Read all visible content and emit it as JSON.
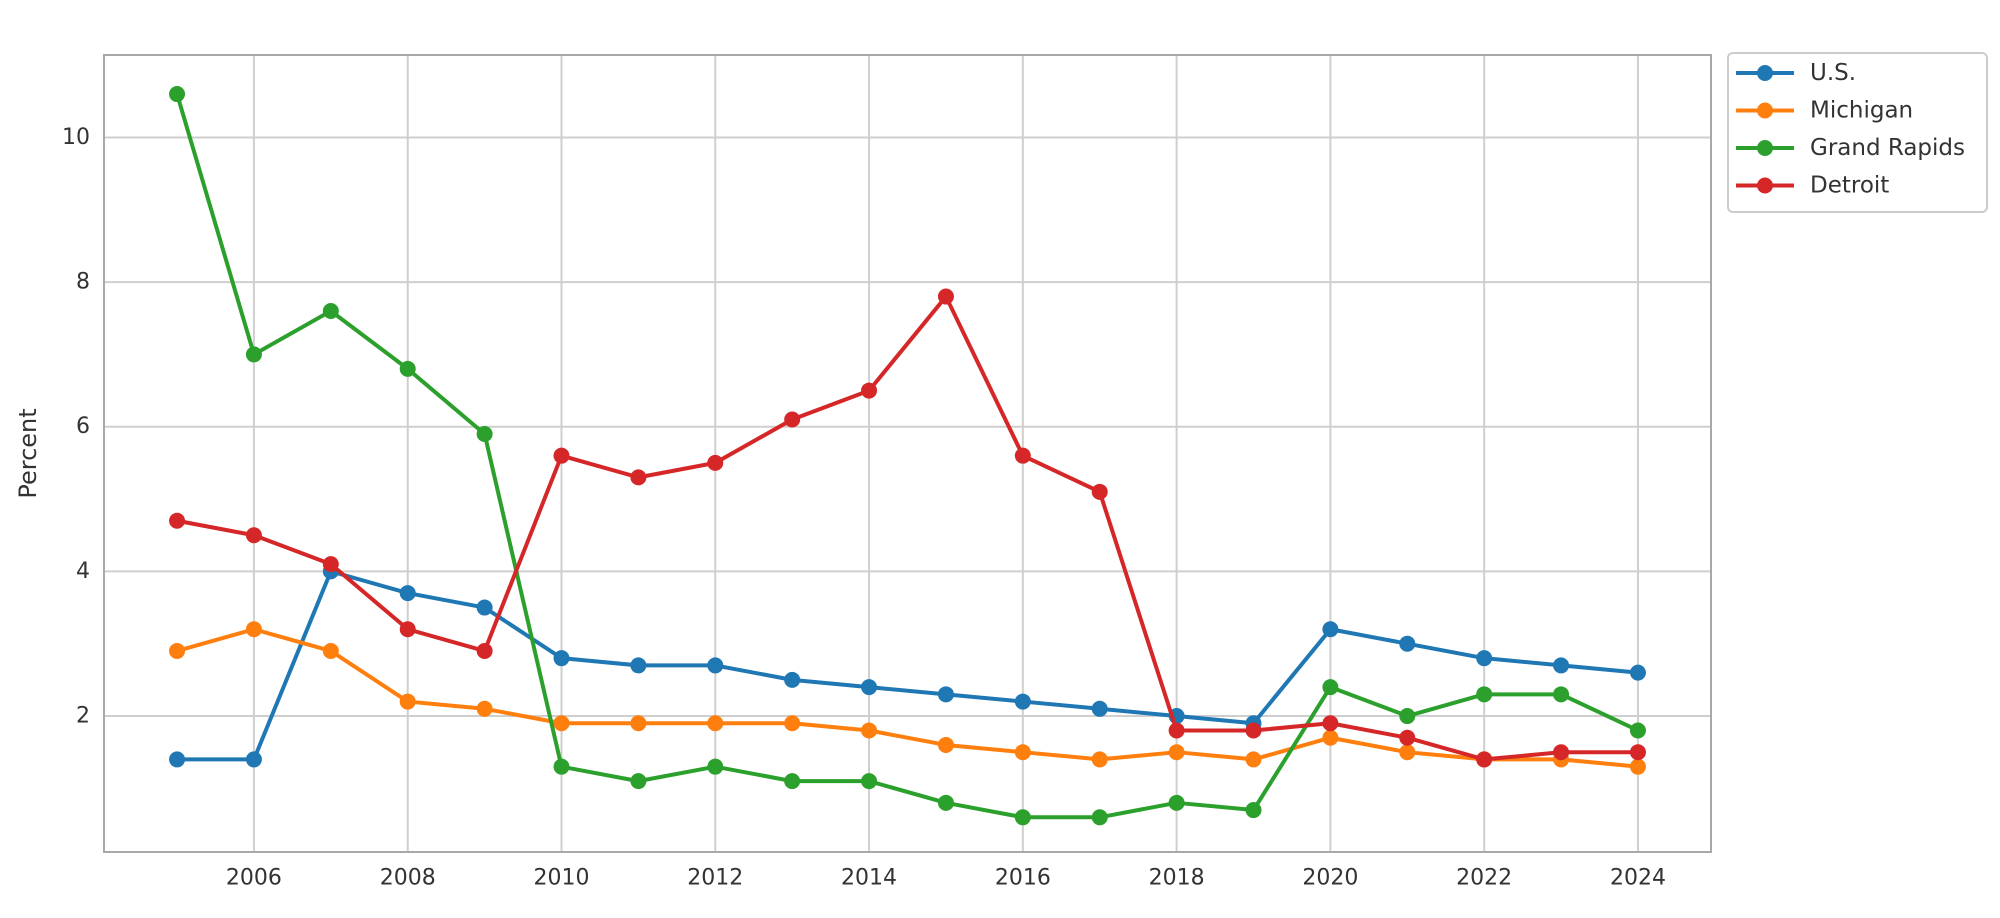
{
  "chart_data": {
    "type": "line",
    "title": "",
    "xlabel": "",
    "ylabel": "Percent",
    "x": [
      2005,
      2006,
      2007,
      2008,
      2009,
      2010,
      2011,
      2012,
      2013,
      2014,
      2015,
      2016,
      2017,
      2018,
      2019,
      2020,
      2021,
      2022,
      2023,
      2024
    ],
    "series": [
      {
        "name": "U.S.",
        "color": "#1f77b4",
        "values": [
          1.4,
          1.4,
          4.0,
          3.7,
          3.5,
          2.8,
          2.7,
          2.7,
          2.5,
          2.4,
          2.3,
          2.2,
          2.1,
          2.0,
          1.9,
          3.2,
          3.0,
          2.8,
          2.7,
          2.6
        ]
      },
      {
        "name": "Michigan",
        "color": "#ff7f0e",
        "values": [
          2.9,
          3.2,
          2.9,
          2.2,
          2.1,
          1.9,
          1.9,
          1.9,
          1.9,
          1.8,
          1.6,
          1.5,
          1.4,
          1.5,
          1.4,
          1.7,
          1.5,
          1.4,
          1.4,
          1.3
        ]
      },
      {
        "name": "Grand Rapids",
        "color": "#2ca02c",
        "values": [
          10.6,
          7.0,
          7.6,
          6.8,
          5.9,
          1.3,
          1.1,
          1.3,
          1.1,
          1.1,
          0.8,
          0.6,
          0.6,
          0.8,
          0.7,
          2.4,
          2.0,
          2.3,
          2.3,
          1.8
        ]
      },
      {
        "name": "Detroit",
        "color": "#d62728",
        "values": [
          4.7,
          4.5,
          4.1,
          3.2,
          2.9,
          5.6,
          5.3,
          5.5,
          6.1,
          6.5,
          7.8,
          5.6,
          5.1,
          1.8,
          1.8,
          1.9,
          1.7,
          1.4,
          1.5,
          1.5
        ]
      }
    ],
    "xticks": [
      2006,
      2008,
      2010,
      2012,
      2014,
      2016,
      2018,
      2020,
      2022,
      2024
    ],
    "yticks": [
      2,
      4,
      6,
      8,
      10
    ],
    "xlim": [
      2004.05,
      2024.95
    ],
    "ylim": [
      0.12,
      11.14
    ],
    "grid": true,
    "legend_position": "upper-right-outside",
    "background": "#ffffff",
    "grid_color": "#cfcfcf",
    "spine_color": "#a8a8a8",
    "legend_border_color": "#cccccc",
    "text_color": "#333333"
  }
}
